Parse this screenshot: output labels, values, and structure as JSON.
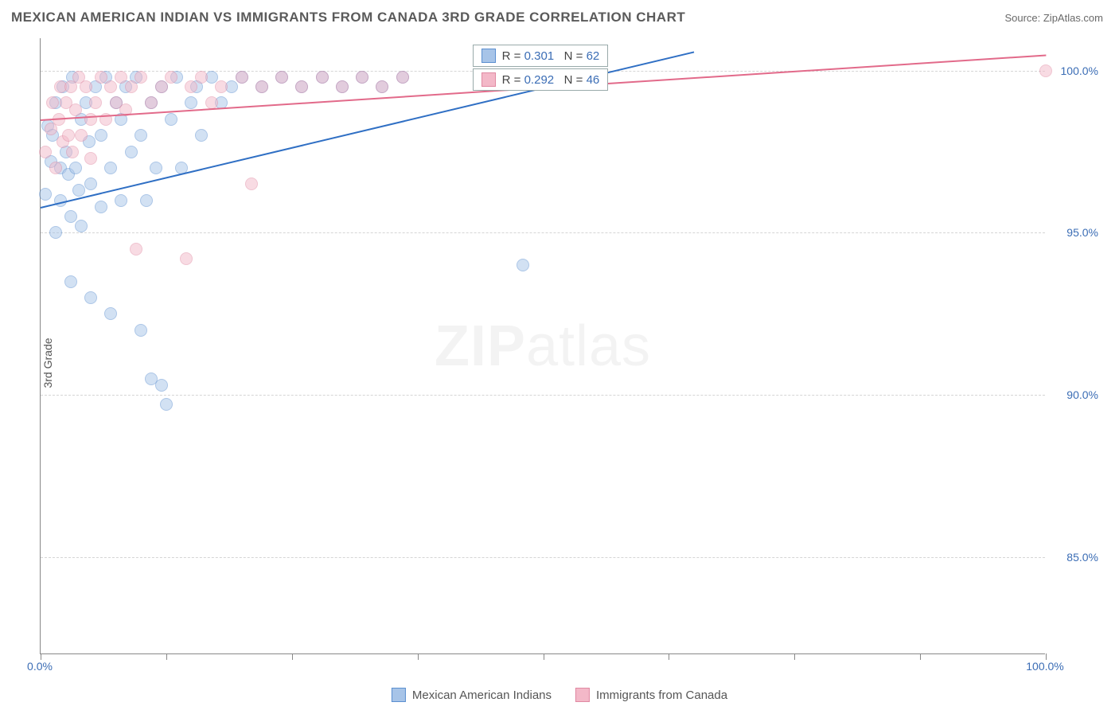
{
  "header": {
    "title": "MEXICAN AMERICAN INDIAN VS IMMIGRANTS FROM CANADA 3RD GRADE CORRELATION CHART",
    "source_label": "Source: ",
    "source_value": "ZipAtlas.com"
  },
  "chart": {
    "type": "scatter",
    "ylabel": "3rd Grade",
    "background_color": "#ffffff",
    "grid_color": "#d5d5d5",
    "axis_color": "#888888",
    "tick_label_color": "#3b6db5",
    "xlim": [
      0,
      100
    ],
    "ylim": [
      82,
      101
    ],
    "x_ticks": [
      0,
      12.5,
      25,
      37.5,
      50,
      62.5,
      75,
      87.5,
      100
    ],
    "x_tick_labels": {
      "0": "0.0%",
      "100": "100.0%"
    },
    "y_ticks": [
      85,
      90,
      95,
      100
    ],
    "y_tick_labels": {
      "85": "85.0%",
      "90": "90.0%",
      "95": "95.0%",
      "100": "100.0%"
    },
    "marker_radius": 8,
    "marker_opacity": 0.5,
    "series": [
      {
        "key": "mexican",
        "label": "Mexican American Indians",
        "fill_color": "#a7c4e8",
        "stroke_color": "#5b8fd0",
        "line_color": "#2f6fc4",
        "stats": {
          "r_label": "R =",
          "r": "0.301",
          "n_label": "N =",
          "n": "62"
        },
        "trend": {
          "x1": 0,
          "y1": 95.8,
          "x2": 65,
          "y2": 100.6
        },
        "points": [
          [
            0.5,
            96.2
          ],
          [
            0.7,
            98.3
          ],
          [
            1.0,
            97.2
          ],
          [
            1.2,
            98.0
          ],
          [
            1.5,
            99.0
          ],
          [
            1.5,
            95.0
          ],
          [
            2.0,
            96.0
          ],
          [
            2.0,
            97.0
          ],
          [
            2.2,
            99.5
          ],
          [
            2.5,
            97.5
          ],
          [
            2.8,
            96.8
          ],
          [
            3.0,
            95.5
          ],
          [
            3.0,
            93.5
          ],
          [
            3.2,
            99.8
          ],
          [
            3.5,
            97.0
          ],
          [
            3.8,
            96.3
          ],
          [
            4.0,
            98.5
          ],
          [
            4.0,
            95.2
          ],
          [
            4.5,
            99.0
          ],
          [
            4.8,
            97.8
          ],
          [
            5.0,
            93.0
          ],
          [
            5.0,
            96.5
          ],
          [
            5.5,
            99.5
          ],
          [
            6.0,
            98.0
          ],
          [
            6.0,
            95.8
          ],
          [
            6.5,
            99.8
          ],
          [
            7.0,
            97.0
          ],
          [
            7.0,
            92.5
          ],
          [
            7.5,
            99.0
          ],
          [
            8.0,
            98.5
          ],
          [
            8.0,
            96.0
          ],
          [
            8.5,
            99.5
          ],
          [
            9.0,
            97.5
          ],
          [
            9.5,
            99.8
          ],
          [
            10.0,
            98.0
          ],
          [
            10.0,
            92.0
          ],
          [
            10.5,
            96.0
          ],
          [
            11.0,
            99.0
          ],
          [
            11.0,
            90.5
          ],
          [
            11.5,
            97.0
          ],
          [
            12.0,
            90.3
          ],
          [
            12.0,
            99.5
          ],
          [
            12.5,
            89.7
          ],
          [
            13.0,
            98.5
          ],
          [
            13.5,
            99.8
          ],
          [
            14.0,
            97.0
          ],
          [
            15.0,
            99.0
          ],
          [
            15.5,
            99.5
          ],
          [
            16.0,
            98.0
          ],
          [
            17.0,
            99.8
          ],
          [
            18.0,
            99.0
          ],
          [
            19.0,
            99.5
          ],
          [
            20.0,
            99.8
          ],
          [
            22.0,
            99.5
          ],
          [
            24.0,
            99.8
          ],
          [
            26.0,
            99.5
          ],
          [
            28.0,
            99.8
          ],
          [
            30.0,
            99.5
          ],
          [
            32.0,
            99.8
          ],
          [
            34.0,
            99.5
          ],
          [
            36.0,
            99.8
          ],
          [
            48.0,
            94.0
          ]
        ]
      },
      {
        "key": "canada",
        "label": "Immigrants from Canada",
        "fill_color": "#f3b8c8",
        "stroke_color": "#e089a2",
        "line_color": "#e26a8a",
        "stats": {
          "r_label": "R =",
          "r": "0.292",
          "n_label": "N =",
          "n": "46"
        },
        "trend": {
          "x1": 0,
          "y1": 98.5,
          "x2": 100,
          "y2": 100.5
        },
        "points": [
          [
            0.5,
            97.5
          ],
          [
            1.0,
            98.2
          ],
          [
            1.2,
            99.0
          ],
          [
            1.5,
            97.0
          ],
          [
            1.8,
            98.5
          ],
          [
            2.0,
            99.5
          ],
          [
            2.2,
            97.8
          ],
          [
            2.5,
            99.0
          ],
          [
            2.8,
            98.0
          ],
          [
            3.0,
            99.5
          ],
          [
            3.2,
            97.5
          ],
          [
            3.5,
            98.8
          ],
          [
            3.8,
            99.8
          ],
          [
            4.0,
            98.0
          ],
          [
            4.5,
            99.5
          ],
          [
            5.0,
            98.5
          ],
          [
            5.0,
            97.3
          ],
          [
            5.5,
            99.0
          ],
          [
            6.0,
            99.8
          ],
          [
            6.5,
            98.5
          ],
          [
            7.0,
            99.5
          ],
          [
            7.5,
            99.0
          ],
          [
            8.0,
            99.8
          ],
          [
            8.5,
            98.8
          ],
          [
            9.0,
            99.5
          ],
          [
            9.5,
            94.5
          ],
          [
            10.0,
            99.8
          ],
          [
            11.0,
            99.0
          ],
          [
            12.0,
            99.5
          ],
          [
            13.0,
            99.8
          ],
          [
            14.5,
            94.2
          ],
          [
            15.0,
            99.5
          ],
          [
            16.0,
            99.8
          ],
          [
            17.0,
            99.0
          ],
          [
            18.0,
            99.5
          ],
          [
            20.0,
            99.8
          ],
          [
            21.0,
            96.5
          ],
          [
            22.0,
            99.5
          ],
          [
            24.0,
            99.8
          ],
          [
            26.0,
            99.5
          ],
          [
            28.0,
            99.8
          ],
          [
            30.0,
            99.5
          ],
          [
            32.0,
            99.8
          ],
          [
            34.0,
            99.5
          ],
          [
            36.0,
            99.8
          ],
          [
            100.0,
            100.0
          ]
        ]
      }
    ],
    "watermark": {
      "zip": "ZIP",
      "atlas": "atlas"
    }
  }
}
